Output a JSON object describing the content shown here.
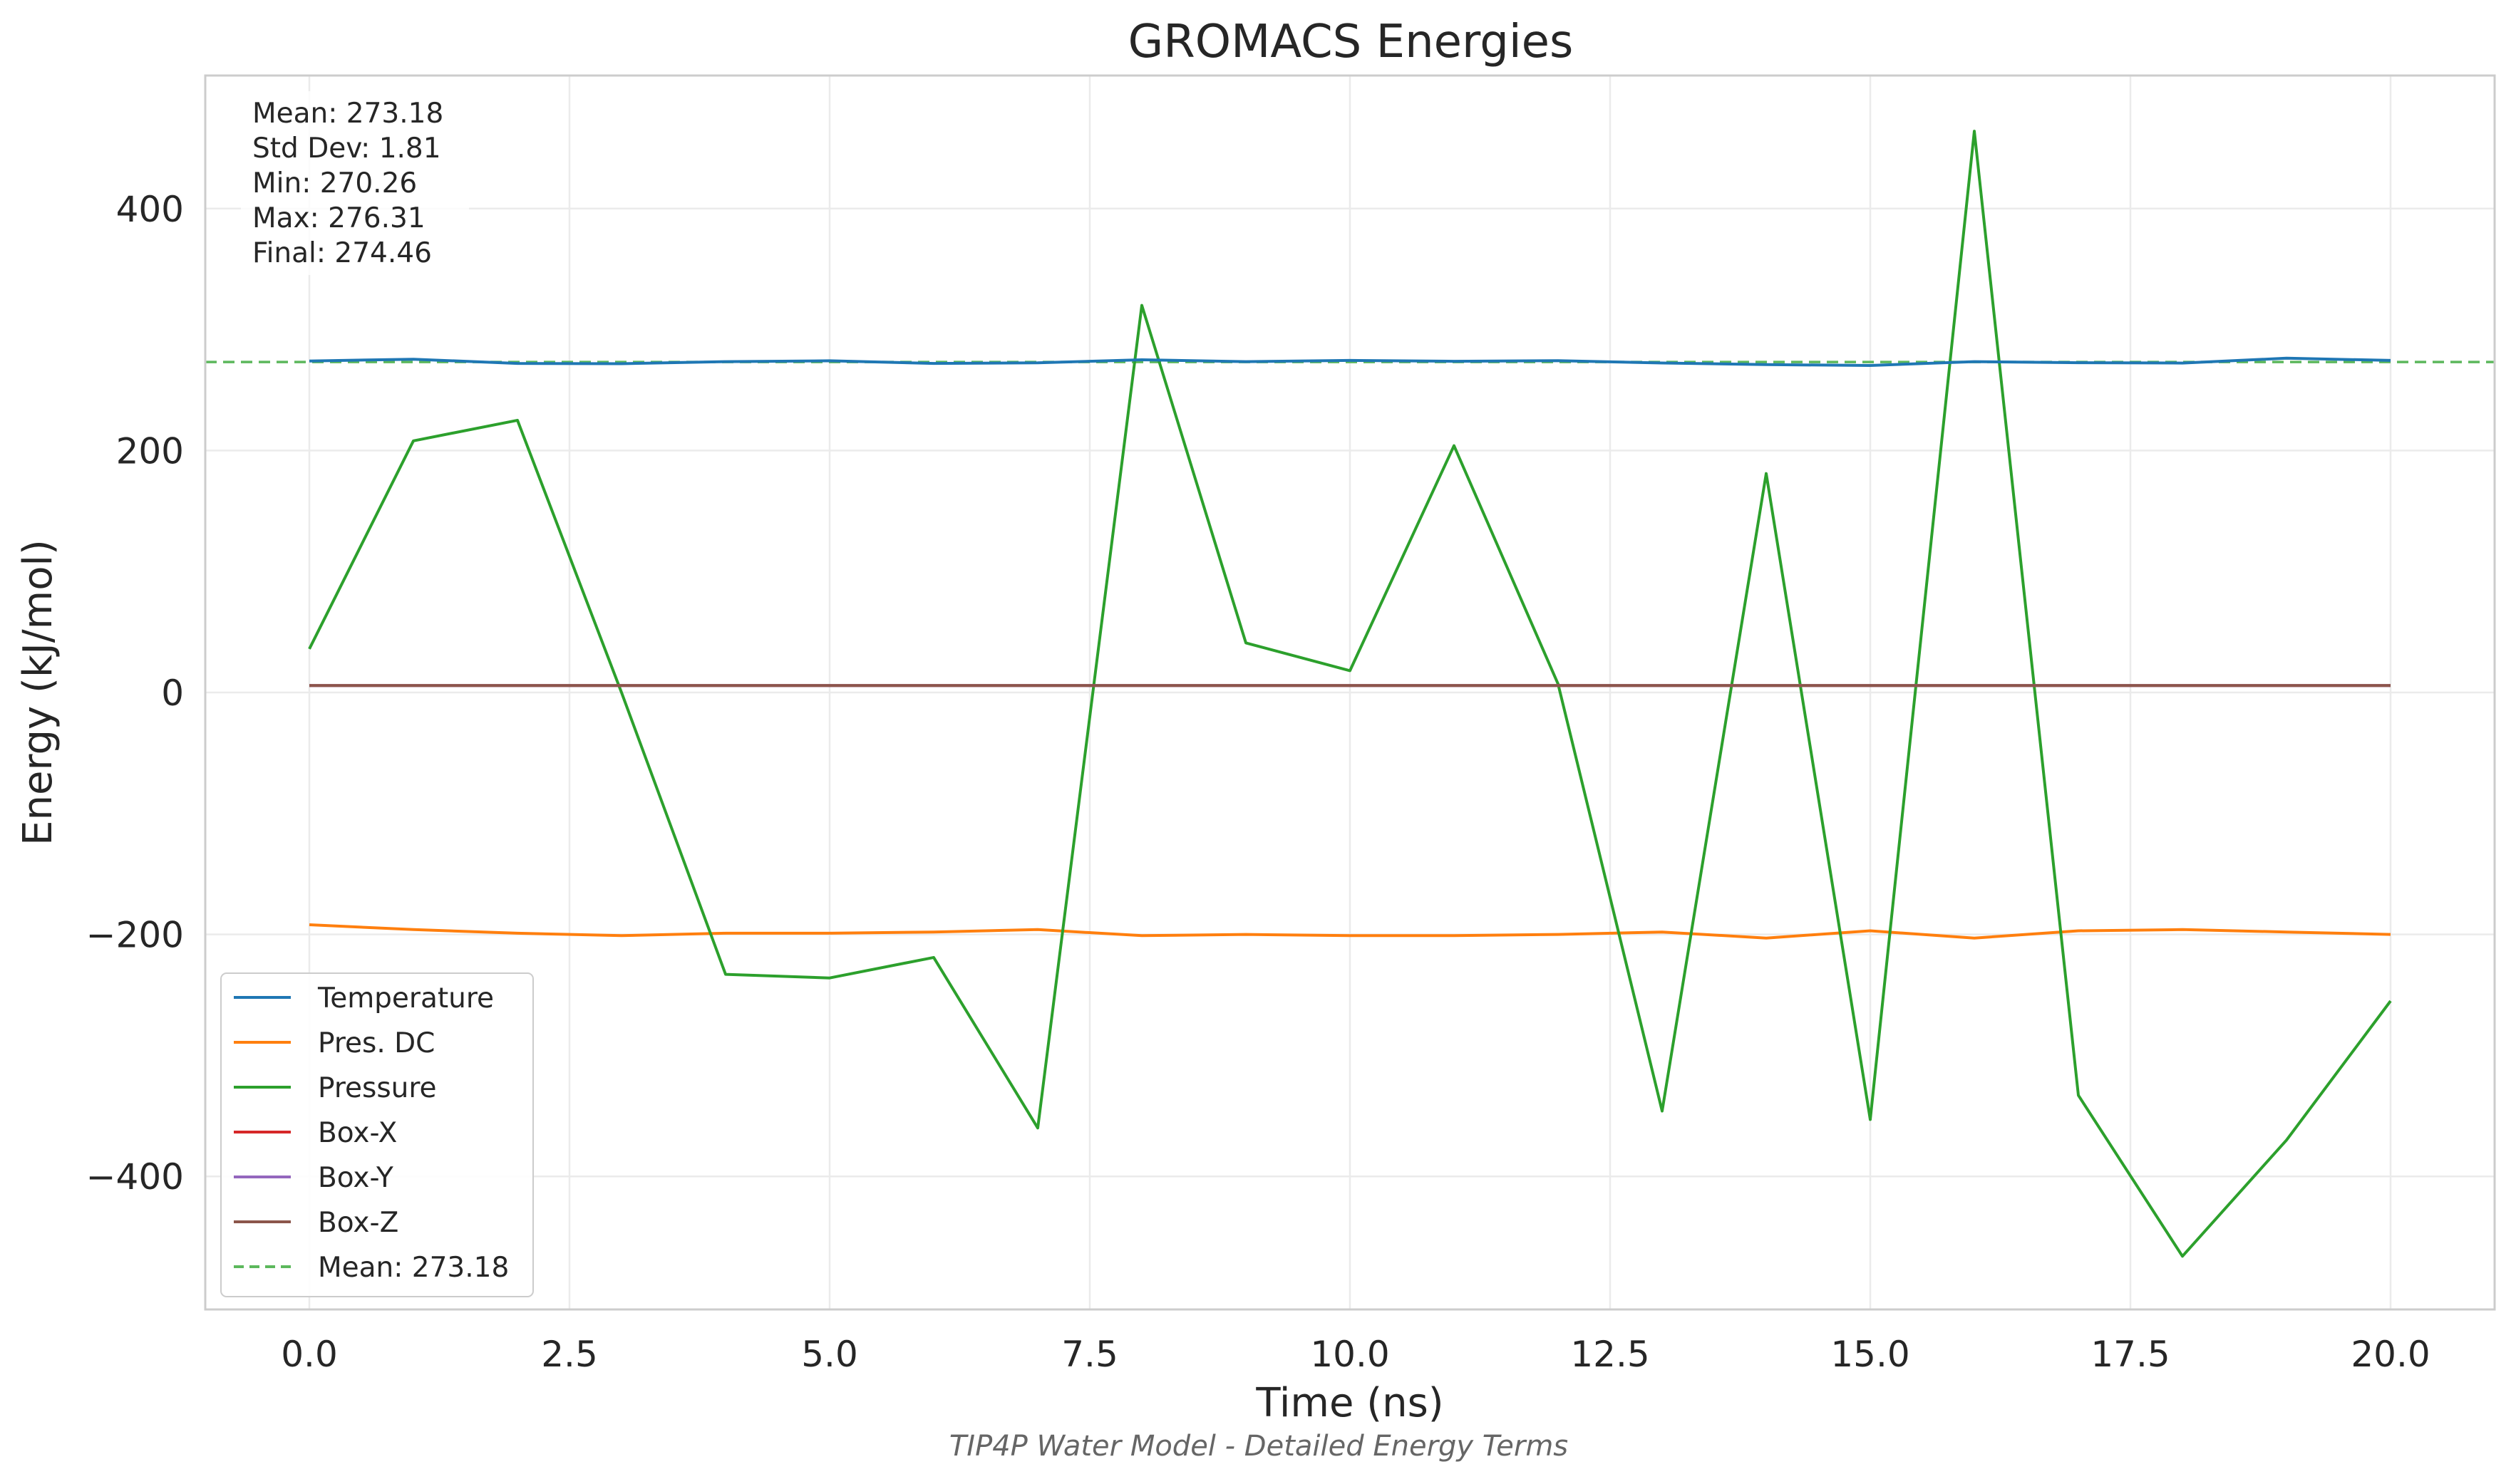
{
  "chart_data": {
    "type": "line",
    "title": "GROMACS Energies",
    "xlabel": "Time (ns)",
    "ylabel": "Energy (kJ/mol)",
    "caption": "TIP4P Water Model - Detailed Energy Terms",
    "xlim": [
      -1.0,
      21.0
    ],
    "ylim": [
      -510,
      510
    ],
    "xticks": [
      0.0,
      2.5,
      5.0,
      7.5,
      10.0,
      12.5,
      15.0,
      17.5,
      20.0
    ],
    "xtick_labels": [
      "0.0",
      "2.5",
      "5.0",
      "7.5",
      "10.0",
      "12.5",
      "15.0",
      "17.5",
      "20.0"
    ],
    "yticks": [
      -400,
      -200,
      0,
      200,
      400
    ],
    "ytick_labels": [
      "−400",
      "−200",
      "0",
      "200",
      "400"
    ],
    "grid": true,
    "legend_position": "lower-left",
    "x": [
      0,
      1,
      2,
      3,
      4,
      5,
      6,
      7,
      8,
      9,
      10,
      11,
      12,
      13,
      14,
      15,
      16,
      17,
      18,
      19,
      20
    ],
    "series": [
      {
        "name": "Temperature",
        "color": "#1f77b4",
        "values": [
          274.0,
          275.5,
          272.0,
          271.8,
          273.5,
          274.2,
          272.0,
          272.5,
          275.0,
          273.5,
          274.5,
          273.8,
          274.3,
          272.4,
          271.0,
          270.3,
          273.5,
          272.6,
          272.3,
          276.3,
          274.5
        ]
      },
      {
        "name": "Pres. DC",
        "color": "#ff7f0e",
        "values": [
          -192,
          -196,
          -199,
          -201,
          -199,
          -199,
          -198,
          -196,
          -201,
          -200,
          -201,
          -201,
          -200,
          -198,
          -203,
          -197,
          -203,
          -197,
          -196,
          -198,
          -200
        ]
      },
      {
        "name": "Pressure",
        "color": "#2ca02c",
        "values": [
          36,
          208,
          225,
          0,
          -233,
          -236,
          -219,
          -360,
          320,
          41,
          18,
          204,
          7,
          -346,
          181,
          -353,
          464,
          -333,
          -466,
          -370,
          -255
        ]
      },
      {
        "name": "Box-X",
        "color": "#d62728",
        "values": [
          5.8,
          5.8,
          5.8,
          5.8,
          5.8,
          5.8,
          5.8,
          5.8,
          5.8,
          5.8,
          5.8,
          5.8,
          5.8,
          5.8,
          5.8,
          5.8,
          5.8,
          5.8,
          5.8,
          5.8,
          5.8
        ]
      },
      {
        "name": "Box-Y",
        "color": "#9467bd",
        "values": [
          5.8,
          5.8,
          5.8,
          5.8,
          5.8,
          5.8,
          5.8,
          5.8,
          5.8,
          5.8,
          5.8,
          5.8,
          5.8,
          5.8,
          5.8,
          5.8,
          5.8,
          5.8,
          5.8,
          5.8,
          5.8
        ]
      },
      {
        "name": "Box-Z",
        "color": "#8c564b",
        "values": [
          5.8,
          5.8,
          5.8,
          5.8,
          5.8,
          5.8,
          5.8,
          5.8,
          5.8,
          5.8,
          5.8,
          5.8,
          5.8,
          5.8,
          5.8,
          5.8,
          5.8,
          5.8,
          5.8,
          5.8,
          5.8
        ]
      }
    ],
    "mean_line": {
      "name": "Mean: 273.18",
      "value": 273.18,
      "color": "#5cb85c",
      "style": "dashed"
    },
    "stats": [
      "Mean: 273.18",
      "Std Dev: 1.81",
      "Min: 270.26",
      "Max: 276.31",
      "Final: 274.46"
    ]
  }
}
